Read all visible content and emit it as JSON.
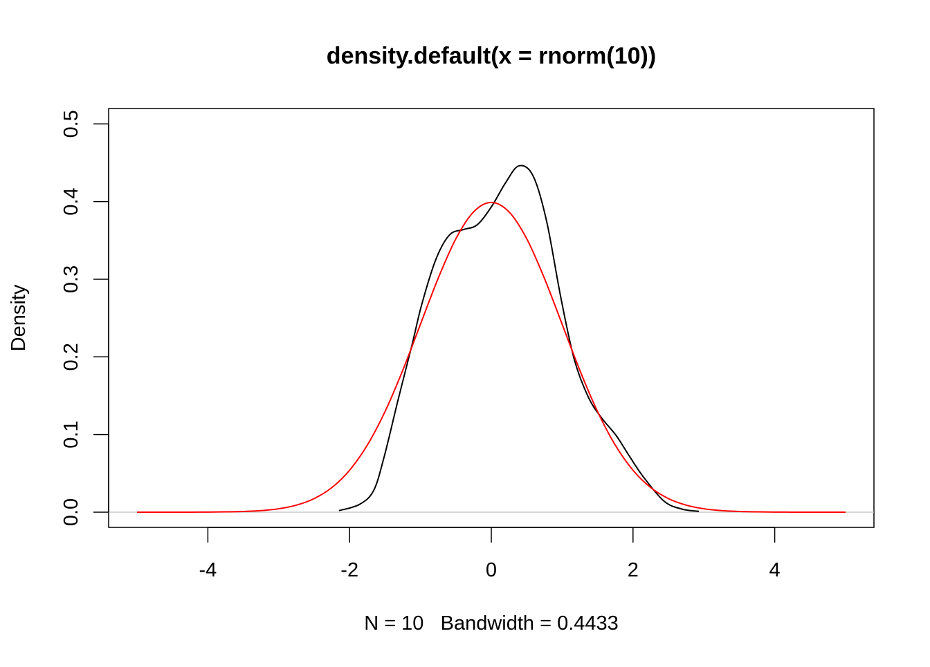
{
  "chart_data": {
    "type": "line",
    "title": "density.default(x = rnorm(10))",
    "xlabel": "N = 10   Bandwidth = 0.4433",
    "ylabel": "Density",
    "xlim": [
      -5.3,
      5.3
    ],
    "ylim": [
      -0.02,
      0.52
    ],
    "x_ticks": [
      -4,
      -2,
      0,
      2,
      4
    ],
    "x_tick_labels": [
      "-4",
      "-2",
      "0",
      "2",
      "4"
    ],
    "y_ticks": [
      0.0,
      0.1,
      0.2,
      0.3,
      0.4,
      0.5
    ],
    "y_tick_labels": [
      "0.0",
      "0.1",
      "0.2",
      "0.3",
      "0.4",
      "0.5"
    ],
    "grid": false,
    "zero_line_color": "#bebebe",
    "series": [
      {
        "color": "#000000",
        "x": [
          -2.15,
          -1.86,
          -1.66,
          -1.51,
          -1.32,
          -1.12,
          -0.98,
          -0.78,
          -0.59,
          -0.39,
          -0.2,
          0.0,
          0.2,
          0.39,
          0.59,
          0.78,
          0.98,
          1.17,
          1.37,
          1.56,
          1.76,
          1.95,
          2.15,
          2.44,
          2.69,
          2.93
        ],
        "y": [
          0.002,
          0.01,
          0.028,
          0.072,
          0.143,
          0.215,
          0.268,
          0.326,
          0.357,
          0.364,
          0.37,
          0.393,
          0.424,
          0.446,
          0.433,
          0.375,
          0.277,
          0.197,
          0.148,
          0.121,
          0.099,
          0.072,
          0.045,
          0.014,
          0.004,
          0.001
        ]
      },
      {
        "color": "#ff0000",
        "x": [
          -5,
          -4.75,
          -4.5,
          -4.25,
          -4,
          -3.75,
          -3.5,
          -3.25,
          -3,
          -2.75,
          -2.5,
          -2.25,
          -2,
          -1.75,
          -1.5,
          -1.25,
          -1,
          -0.75,
          -0.5,
          -0.25,
          0,
          0.25,
          0.5,
          0.75,
          1,
          1.25,
          1.5,
          1.75,
          2,
          2.25,
          2.5,
          2.75,
          3,
          3.25,
          3.5,
          3.75,
          4,
          4.25,
          4.5,
          4.75,
          5
        ],
        "y": [
          1.5e-06,
          1e-05,
          2e-05,
          5e-05,
          0.0001,
          0.0004,
          0.0009,
          0.002,
          0.0044,
          0.0091,
          0.0175,
          0.0317,
          0.054,
          0.0863,
          0.1295,
          0.1826,
          0.242,
          0.3011,
          0.3521,
          0.3867,
          0.3989,
          0.3867,
          0.3521,
          0.3011,
          0.242,
          0.1826,
          0.1295,
          0.0863,
          0.054,
          0.0317,
          0.0175,
          0.0091,
          0.0044,
          0.002,
          0.0009,
          0.0004,
          0.0001,
          5e-05,
          2e-05,
          1e-05,
          1.5e-06
        ]
      }
    ]
  }
}
